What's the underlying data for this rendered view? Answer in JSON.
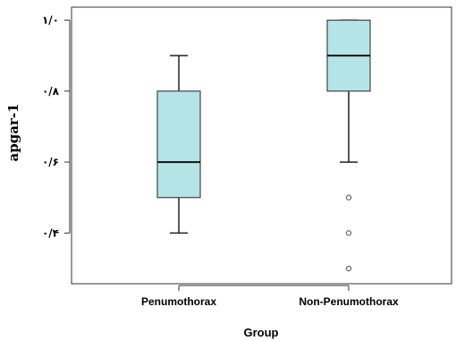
{
  "chart_data": {
    "type": "boxplot",
    "title": "",
    "xlabel": "Group",
    "ylabel": "apgar-1",
    "ylim": [
      0.3,
      1.0
    ],
    "yticks": [
      0.4,
      0.6,
      0.8,
      1.0
    ],
    "ytick_labels": [
      "۰/۴",
      "۰/۶",
      "۰/۸",
      "۱/۰"
    ],
    "grid": false,
    "box_color": "#b4e4e6",
    "categories": [
      "Penumothorax",
      "Non-Penumothorax"
    ],
    "boxes": [
      {
        "category": "Penumothorax",
        "whisker_low": 0.4,
        "q1": 0.5,
        "median": 0.6,
        "q3": 0.8,
        "whisker_high": 0.9,
        "outliers": []
      },
      {
        "category": "Non-Penumothorax",
        "whisker_low": 0.6,
        "q1": 0.8,
        "median": 0.9,
        "q3": 1.0,
        "whisker_high": 1.0,
        "outliers": [
          0.5,
          0.4,
          0.3
        ]
      }
    ]
  }
}
